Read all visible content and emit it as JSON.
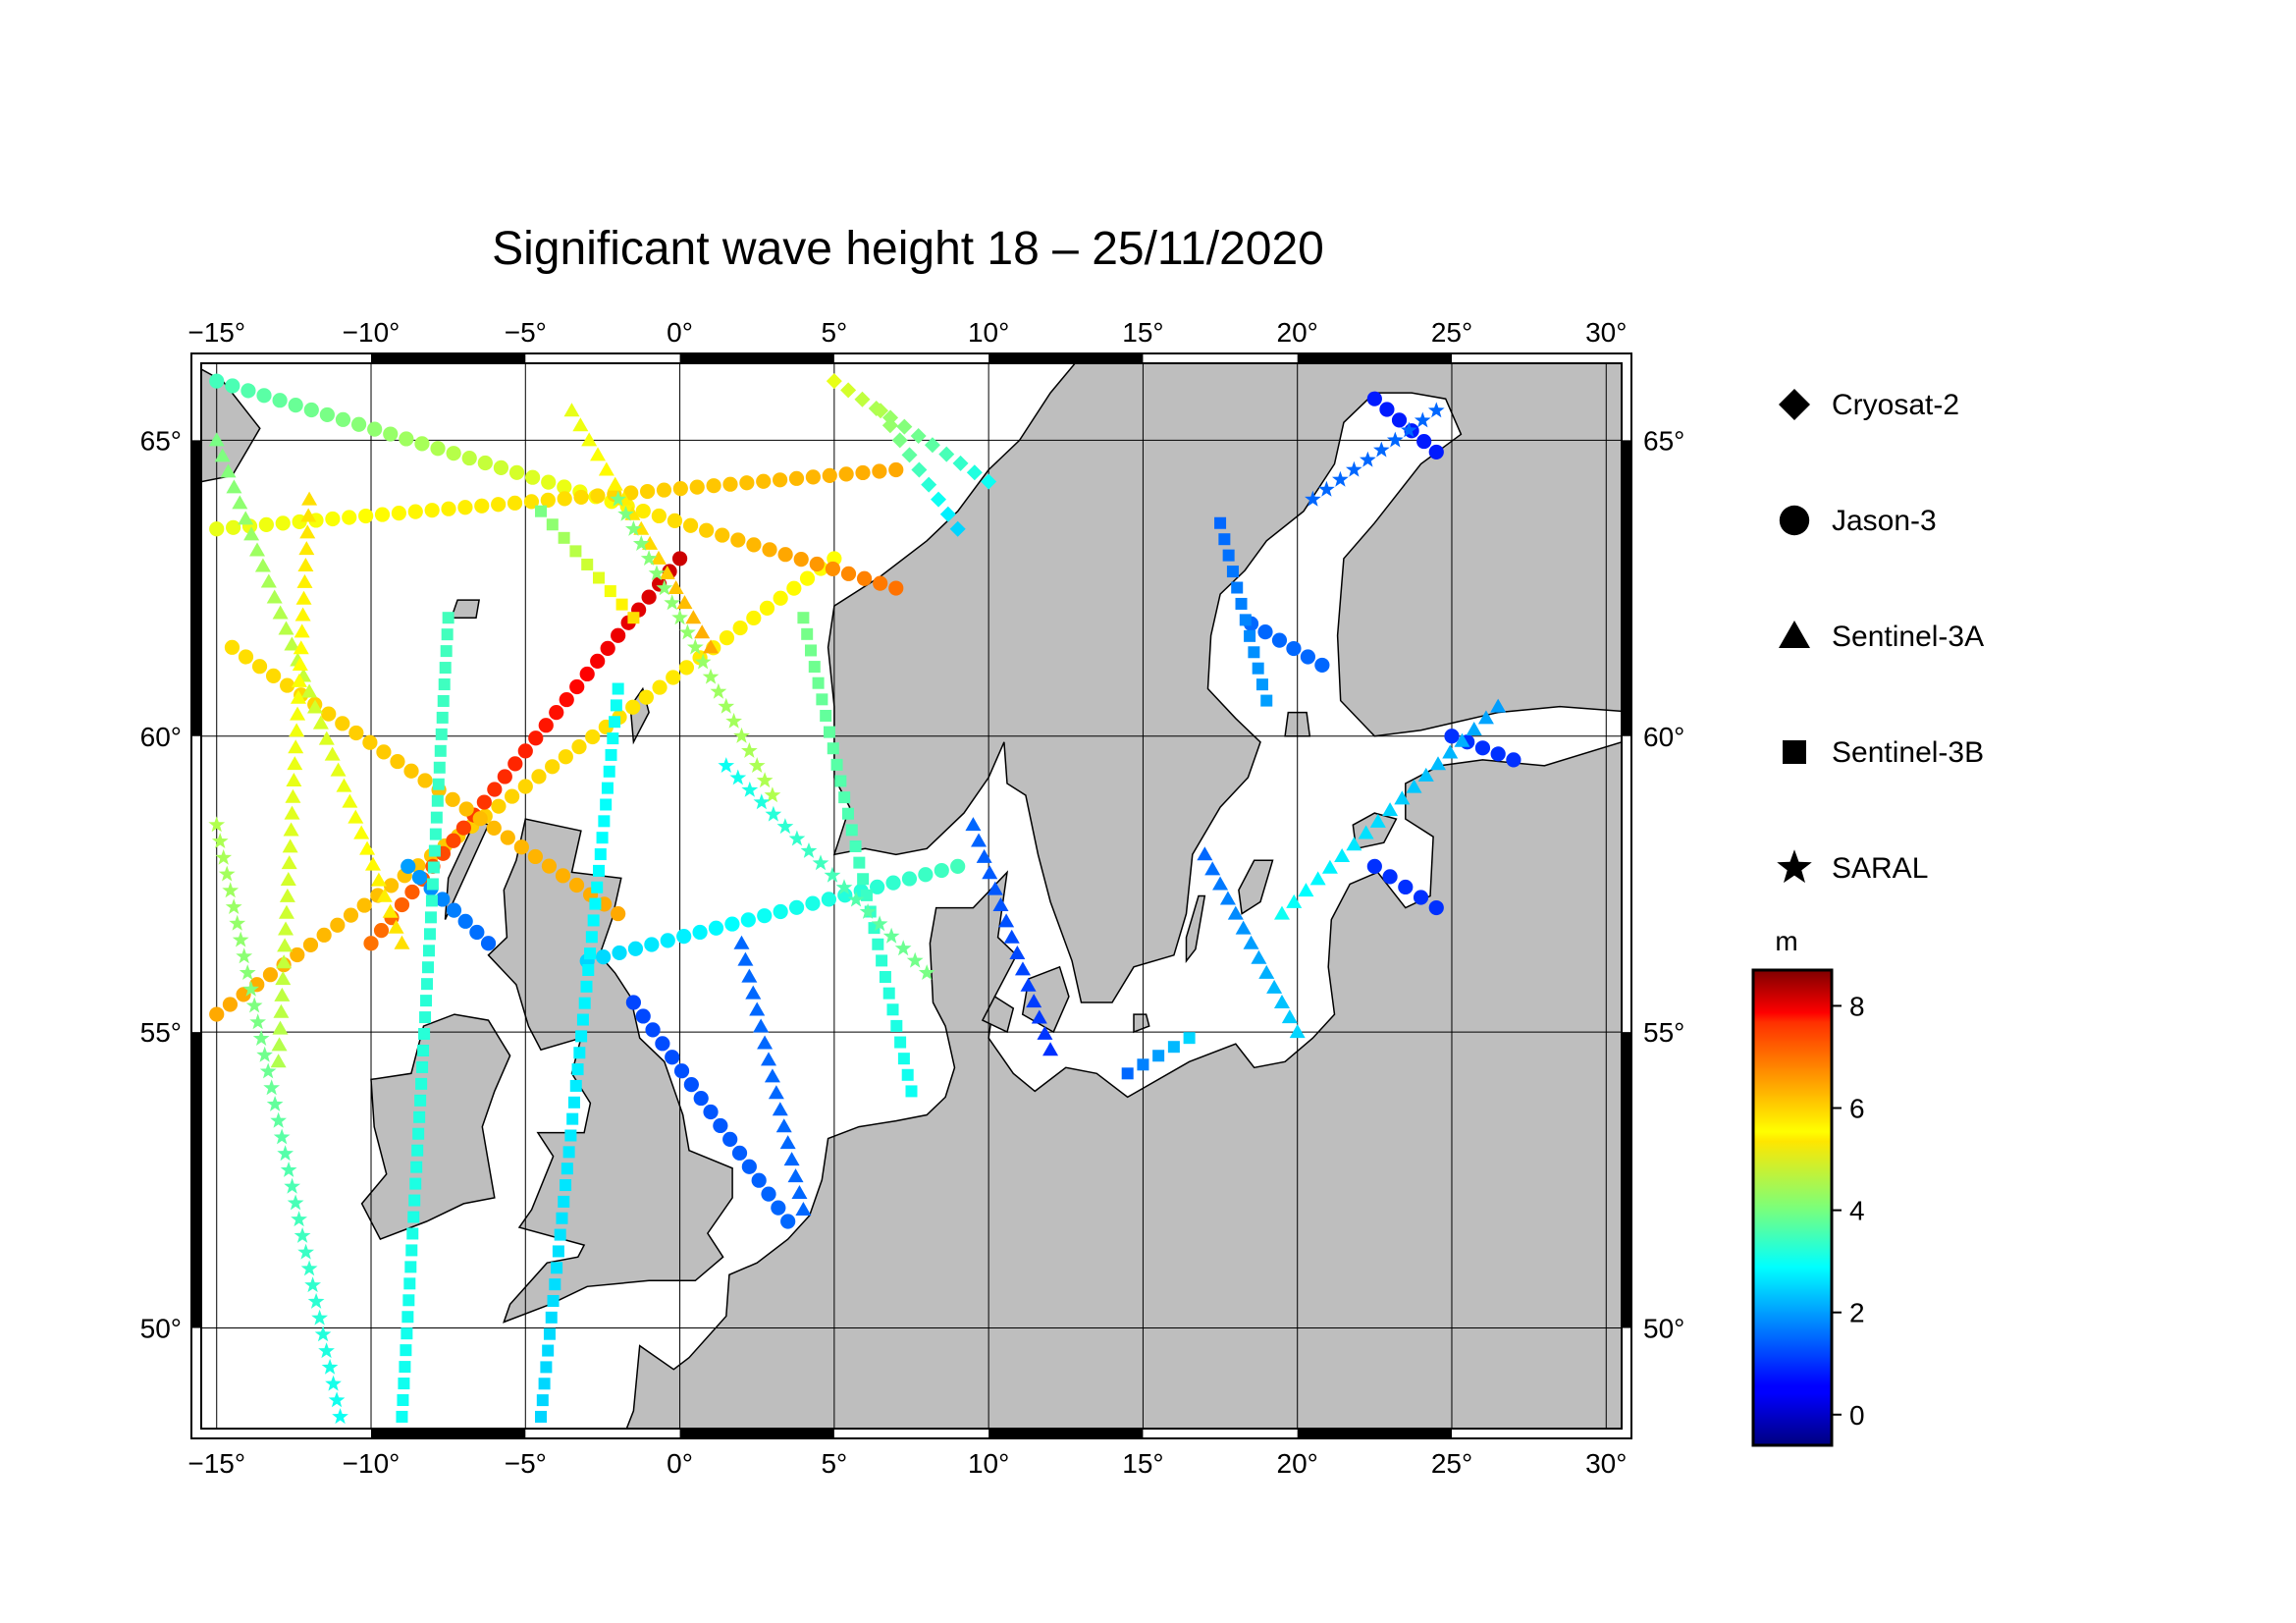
{
  "title": "Significant wave height 18 – 25/11/2020",
  "map": {
    "lon_range": [
      -15.5,
      30.5
    ],
    "lat_range": [
      48.3,
      66.3
    ],
    "lon_ticks": [
      -15,
      -10,
      -5,
      0,
      5,
      10,
      15,
      20,
      25,
      30
    ],
    "lat_ticks": [
      50,
      55,
      60,
      65
    ],
    "lon_tick_labels": [
      "−15°",
      "−10°",
      "−5°",
      "0°",
      "5°",
      "10°",
      "15°",
      "20°",
      "25°",
      "30°"
    ],
    "lat_tick_labels": [
      "50°",
      "55°",
      "60°",
      "65°"
    ],
    "ocean_color": "#ffffff",
    "land_color": "#bebebe",
    "grid": true
  },
  "legend": {
    "items": [
      {
        "label": "Cryosat-2",
        "symbol": "diamond"
      },
      {
        "label": "Jason-3",
        "symbol": "circle"
      },
      {
        "label": "Sentinel-3A",
        "symbol": "triangle"
      },
      {
        "label": "Sentinel-3B",
        "symbol": "square"
      },
      {
        "label": "SARAL",
        "symbol": "star"
      }
    ]
  },
  "colorbar": {
    "unit": "m",
    "min": -0.6,
    "max": 8.7,
    "ticks": [
      0,
      2,
      4,
      6,
      8
    ],
    "tick_labels": [
      "0",
      "2",
      "4",
      "6",
      "8"
    ],
    "colormap": "jet"
  },
  "chart_data": {
    "type": "scatter",
    "title": "Significant wave height 18 – 25/11/2020",
    "unit": "m",
    "tracks": [
      {
        "satellite": "Jason-3",
        "from": [
          -15,
          55.3
        ],
        "to": [
          5,
          63.0
        ],
        "swh_from": 6.0,
        "swh_to": 5.2
      },
      {
        "satellite": "Jason-3",
        "from": [
          -10,
          56.5
        ],
        "to": [
          0,
          63.0
        ],
        "swh_from": 6.5,
        "swh_to": 8.0
      },
      {
        "satellite": "Jason-3",
        "from": [
          -14.5,
          61.5
        ],
        "to": [
          -2,
          57.0
        ],
        "swh_from": 5.5,
        "swh_to": 6.0
      },
      {
        "satellite": "Jason-3",
        "from": [
          -15,
          66.0
        ],
        "to": [
          7,
          62.5
        ],
        "swh_from": 3.5,
        "swh_to": 6.5
      },
      {
        "satellite": "Jason-3",
        "from": [
          -15,
          63.5
        ],
        "to": [
          7,
          64.5
        ],
        "swh_from": 5.0,
        "swh_to": 6.0
      },
      {
        "satellite": "Jason-3",
        "from": [
          -3,
          56.2
        ],
        "to": [
          9,
          57.8
        ],
        "swh_from": 2.5,
        "swh_to": 3.5
      },
      {
        "satellite": "Jason-3",
        "from": [
          -1.5,
          55.5
        ],
        "to": [
          3.5,
          51.8
        ],
        "swh_from": 1.2,
        "swh_to": 1.5
      },
      {
        "satellite": "Jason-3",
        "from": [
          18.5,
          61.9
        ],
        "to": [
          20.8,
          61.2
        ],
        "swh_from": 1.5,
        "swh_to": 1.5
      },
      {
        "satellite": "Jason-3",
        "from": [
          22.5,
          65.7
        ],
        "to": [
          24.5,
          64.8
        ],
        "swh_from": 0.8,
        "swh_to": 0.8
      },
      {
        "satellite": "Jason-3",
        "from": [
          22.5,
          57.8
        ],
        "to": [
          24.5,
          57.1
        ],
        "swh_from": 1.0,
        "swh_to": 1.0
      },
      {
        "satellite": "Jason-3",
        "from": [
          25,
          60.0
        ],
        "to": [
          27,
          59.6
        ],
        "swh_from": 1.0,
        "swh_to": 1.0
      },
      {
        "satellite": "Jason-3",
        "from": [
          -8.8,
          57.8
        ],
        "to": [
          -6.2,
          56.5
        ],
        "swh_from": 2.0,
        "swh_to": 1.5
      },
      {
        "satellite": "Sentinel-3B",
        "from": [
          -7.5,
          62.0
        ],
        "to": [
          -9,
          48.5
        ],
        "swh_from": 3.5,
        "swh_to": 3.0
      },
      {
        "satellite": "Sentinel-3B",
        "from": [
          -2,
          60.8
        ],
        "to": [
          -4.5,
          48.5
        ],
        "swh_from": 3.0,
        "swh_to": 2.5
      },
      {
        "satellite": "Sentinel-3B",
        "from": [
          4,
          62.0
        ],
        "to": [
          7.5,
          54.0
        ],
        "swh_from": 4.0,
        "swh_to": 3.0
      },
      {
        "satellite": "Sentinel-3B",
        "from": [
          -4.5,
          63.8
        ],
        "to": [
          -1.5,
          62.0
        ],
        "swh_from": 4.0,
        "swh_to": 5.5
      },
      {
        "satellite": "Sentinel-3B",
        "from": [
          17.5,
          63.6
        ],
        "to": [
          19,
          60.6
        ],
        "swh_from": 1.5,
        "swh_to": 2.0
      },
      {
        "satellite": "Sentinel-3B",
        "from": [
          14.5,
          54.3
        ],
        "to": [
          16.5,
          54.9
        ],
        "swh_from": 1.5,
        "swh_to": 2.5
      },
      {
        "satellite": "Sentinel-3A",
        "from": [
          -15,
          65.0
        ],
        "to": [
          -9,
          56.5
        ],
        "swh_from": 4.0,
        "swh_to": 5.5
      },
      {
        "satellite": "Sentinel-3A",
        "from": [
          -12,
          64.0
        ],
        "to": [
          -13,
          54.5
        ],
        "swh_from": 5.5,
        "swh_to": 4.5
      },
      {
        "satellite": "Sentinel-3A",
        "from": [
          9.5,
          58.5
        ],
        "to": [
          12,
          54.7
        ],
        "swh_from": 1.5,
        "swh_to": 1.0
      },
      {
        "satellite": "Sentinel-3A",
        "from": [
          2,
          56.5
        ],
        "to": [
          4,
          52.0
        ],
        "swh_from": 1.5,
        "swh_to": 1.5
      },
      {
        "satellite": "Sentinel-3A",
        "from": [
          17,
          58.0
        ],
        "to": [
          20,
          55.0
        ],
        "swh_from": 1.5,
        "swh_to": 2.5
      },
      {
        "satellite": "Sentinel-3A",
        "from": [
          19.5,
          57.0
        ],
        "to": [
          26.5,
          60.5
        ],
        "swh_from": 3.0,
        "swh_to": 2.0
      },
      {
        "satellite": "Sentinel-3A",
        "from": [
          -3.5,
          65.5
        ],
        "to": [
          1,
          61.5
        ],
        "swh_from": 5.0,
        "swh_to": 6.0
      },
      {
        "satellite": "SARAL",
        "from": [
          -15,
          58.5
        ],
        "to": [
          -11,
          48.5
        ],
        "swh_from": 4.5,
        "swh_to": 3.0
      },
      {
        "satellite": "SARAL",
        "from": [
          -2,
          64.0
        ],
        "to": [
          3,
          59.0
        ],
        "swh_from": 4.0,
        "swh_to": 4.5
      },
      {
        "satellite": "SARAL",
        "from": [
          1.5,
          59.5
        ],
        "to": [
          8,
          56.0
        ],
        "swh_from": 3.0,
        "swh_to": 4.0
      },
      {
        "satellite": "SARAL",
        "from": [
          20.5,
          64.0
        ],
        "to": [
          24.5,
          65.5
        ],
        "swh_from": 1.5,
        "swh_to": 1.5
      },
      {
        "satellite": "Cryosat-2",
        "from": [
          5,
          66.0
        ],
        "to": [
          10,
          64.3
        ],
        "swh_from": 5.0,
        "swh_to": 3.0
      },
      {
        "satellite": "Cryosat-2",
        "from": [
          6.5,
          65.5
        ],
        "to": [
          9,
          63.5
        ],
        "swh_from": 4.5,
        "swh_to": 2.5
      }
    ]
  }
}
